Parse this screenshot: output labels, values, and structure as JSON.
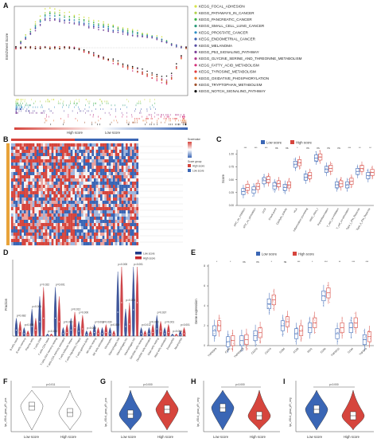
{
  "figure": {
    "panel_labels": [
      "A",
      "B",
      "C",
      "D",
      "E",
      "F",
      "G",
      "H",
      "I"
    ]
  },
  "panelA": {
    "ylabel": "Enrichment Score",
    "xlabel_left": "High score",
    "xlabel_right": "Low score",
    "legend": [
      {
        "name": "KEGG_FOCAL_ADHESION",
        "color": "#d6e34a"
      },
      {
        "name": "KEGG_PATHWAYS_IN_CANCER",
        "color": "#b1d14a"
      },
      {
        "name": "KEGG_PANCREATIC_CANCER",
        "color": "#3db349"
      },
      {
        "name": "KEGG_SMALL_CELL_LUNG_CANCER",
        "color": "#2a9a7a"
      },
      {
        "name": "KEGG_PROSTATE_CANCER",
        "color": "#2c8dc4"
      },
      {
        "name": "KEGG_ENDOMETRIAL_CANCER",
        "color": "#3a5fb2"
      },
      {
        "name": "KEGG_MELANOMA",
        "color": "#574ea3"
      },
      {
        "name": "KEGG_P53_SIGNALING_PATHWAY",
        "color": "#7c3f98"
      },
      {
        "name": "KEGG_GLYCINE_SERINE_AND_THREONINE_METABOLISM",
        "color": "#b03a8e"
      },
      {
        "name": "KEGG_FATTY_ACID_METABOLISM",
        "color": "#d4307a"
      },
      {
        "name": "KEGG_TYROSINE_METABOLISM",
        "color": "#e23a3a"
      },
      {
        "name": "KEGG_OXIDATIVE_PHOSPHORYLATION",
        "color": "#e9772e"
      },
      {
        "name": "KEGG_TRYPTOPHAN_METABOLISM",
        "color": "#a0522d"
      },
      {
        "name": "KEGG_NOTCH_SIGNALING_PATHWAY",
        "color": "#111111"
      }
    ]
  },
  "panelB": {
    "legend_title_1": "Scorevalue",
    "legend_title_2": "Score group",
    "legend_group": "Score group",
    "legend_high": "High score",
    "legend_low": "Low score"
  },
  "panelC": {
    "ylabel": "Score",
    "legend_low": "Low score",
    "legend_high": "High score",
    "colors": {
      "low": "#3a66b5",
      "high": "#d6453d"
    },
    "categories": [
      "APC_co_inhibition",
      "APC_co_stimulation",
      "CCR",
      "Check-point",
      "Cytolytic_activity",
      "HLA",
      "Inflammation-promoting",
      "MHC_class_I",
      "Parainflammation",
      "T_cell_co-inhibition",
      "T_cell_co-stimulation",
      "Type_I_IFN_Reponse",
      "Type_II_IFN_Reponse"
    ],
    "significance": [
      "***",
      "***",
      "***",
      "ns",
      "ns",
      "*",
      "ns",
      "ns",
      "ns",
      "ns",
      "***",
      "**",
      "**"
    ],
    "y_ticks": [
      "0.00",
      "0.25",
      "0.50",
      "0.75",
      "1.00"
    ]
  },
  "panelD": {
    "ylabel": "Fraction",
    "legend_low": "Low score",
    "legend_high": "High score",
    "colors": {
      "low": "#1f3a8a",
      "high": "#c5262c"
    },
    "categories": [
      "B cells naive",
      "B cells memory",
      "Plasma cells",
      "T cells CD8",
      "T cells CD4 naive",
      "T cells CD4 memory resting",
      "T cells CD4 memory activated",
      "T cells follicular helper",
      "T cells regulatory (Tregs)",
      "T cells gamma delta",
      "NK cells resting",
      "NK cells activated",
      "Monocytes",
      "Macrophages M0",
      "Macrophages M1",
      "Macrophages M2",
      "Dendritic cells resting",
      "Dendritic cells activated",
      "Mast cells resting",
      "Mast cells activated",
      "Eosinophils",
      "Neutrophils"
    ],
    "pvalues": [
      "p=0.082",
      "p=0.005",
      "p=0.001",
      "p=0.022",
      "p=0.165",
      "p=0.001",
      "p=0.000",
      "p=0.012",
      "p=0.000",
      "p=0.000",
      "p=0.004",
      "p=0.030",
      "p=0.000",
      "p=0.000",
      "p=0.000",
      "p=0.001",
      "p=0.012",
      "p=0.000",
      "p=0.037",
      "p=0.001",
      "p=0.004",
      "p=0.001"
    ]
  },
  "panelE": {
    "ylabel": "Gene expression",
    "legend_low": "Low score",
    "legend_high": "High score",
    "colors": {
      "low": "#3a66b5",
      "high": "#d6453d"
    },
    "genes": [
      "TNFRSF9",
      "CD80",
      "TNFRSF18",
      "CD276",
      "CD274",
      "CD86",
      "CD28",
      "IDO1",
      "CD40",
      "TNFSF15",
      "CD44",
      "TNFSF4"
    ],
    "significance": [
      "*",
      "*",
      "ns",
      "ns",
      "*",
      "ns",
      "***",
      "*",
      "***",
      "**",
      "***",
      "***"
    ],
    "y_ticks": [
      "0",
      "2",
      "4",
      "6",
      "8"
    ]
  },
  "panelF": {
    "ylabel": "lps_c30c4_gsva_pFr_pos",
    "pvalue": "p=0.011",
    "x_low": "Low score",
    "x_high": "High score"
  },
  "panelG": {
    "ylabel": "lps_c30c4_gsva_pFr_pos",
    "pvalue": "p=0.000",
    "x_low": "Low score",
    "x_high": "High score"
  },
  "panelH": {
    "ylabel": "lps_c30c4_gsva_pFr_neg",
    "pvalue": "p=0.000",
    "x_low": "Low score",
    "x_high": "High score"
  },
  "panelI": {
    "ylabel": "lps_c30c4_gsva_pFr_neg",
    "pvalue": "p=0.000",
    "x_low": "Low score",
    "x_high": "High score"
  },
  "chart_data": [
    {
      "type": "line",
      "title": "",
      "ylabel": "Enrichment Score",
      "note": "GSEA running enrichment curves; high-score pathways rise early, metabolism pathways dip late",
      "series": [
        {
          "name": "KEGG_FOCAL_ADHESION",
          "peak_es": 0.68
        },
        {
          "name": "KEGG_PATHWAYS_IN_CANCER",
          "peak_es": 0.62
        },
        {
          "name": "KEGG_PANCREATIC_CANCER",
          "peak_es": 0.6
        },
        {
          "name": "KEGG_SMALL_CELL_LUNG_CANCER",
          "peak_es": 0.58
        },
        {
          "name": "KEGG_PROSTATE_CANCER",
          "peak_es": 0.55
        },
        {
          "name": "KEGG_ENDOMETRIAL_CANCER",
          "peak_es": 0.52
        },
        {
          "name": "KEGG_MELANOMA",
          "peak_es": 0.5
        },
        {
          "name": "KEGG_P53_SIGNALING_PATHWAY",
          "peak_es": 0.48
        },
        {
          "name": "KEGG_GLYCINE_SERINE_AND_THREONINE_METABOLISM",
          "peak_es": -0.55
        },
        {
          "name": "KEGG_FATTY_ACID_METABOLISM",
          "peak_es": -0.62
        },
        {
          "name": "KEGG_TYROSINE_METABOLISM",
          "peak_es": -0.6
        },
        {
          "name": "KEGG_OXIDATIVE_PHOSPHORYLATION",
          "peak_es": -0.58
        },
        {
          "name": "KEGG_TRYPTOPHAN_METABOLISM",
          "peak_es": -0.57
        },
        {
          "name": "KEGG_NOTCH_SIGNALING_PATHWAY",
          "peak_es": -0.5
        }
      ]
    },
    {
      "type": "box",
      "title": "",
      "ylabel": "Score",
      "ylim": [
        0,
        1.05
      ],
      "categories": [
        "APC_co_inhibition",
        "APC_co_stimulation",
        "CCR",
        "Check-point",
        "Cytolytic_activity",
        "HLA",
        "Inflammation-promoting",
        "MHC_class_I",
        "Parainflammation",
        "T_cell_co-inhibition",
        "T_cell_co-stimulation",
        "Type_I_IFN_Reponse",
        "Type_II_IFN_Reponse"
      ],
      "series": [
        {
          "name": "Low score",
          "median": [
            0.27,
            0.3,
            0.48,
            0.38,
            0.35,
            0.8,
            0.55,
            0.92,
            0.7,
            0.4,
            0.4,
            0.66,
            0.58
          ]
        },
        {
          "name": "High score",
          "median": [
            0.35,
            0.37,
            0.5,
            0.42,
            0.4,
            0.83,
            0.58,
            0.94,
            0.72,
            0.42,
            0.47,
            0.72,
            0.64
          ]
        }
      ]
    },
    {
      "type": "violin",
      "title": "",
      "ylabel": "Fraction",
      "categories": [
        "B cells naive",
        "B cells memory",
        "Plasma cells",
        "T cells CD8",
        "T cells CD4 naive",
        "T cells CD4 memory resting",
        "T cells CD4 memory activated",
        "T cells follicular helper",
        "T cells regulatory (Tregs)",
        "T cells gamma delta",
        "NK cells resting",
        "NK cells activated",
        "Monocytes",
        "Macrophages M0",
        "Macrophages M1",
        "Macrophages M2",
        "Dendritic cells resting",
        "Dendritic cells activated",
        "Mast cells resting",
        "Mast cells activated",
        "Eosinophils",
        "Neutrophils"
      ],
      "series": [
        {
          "name": "Low score",
          "median": [
            0.05,
            0.02,
            0.08,
            0.12,
            0.0,
            0.15,
            0.02,
            0.05,
            0.04,
            0.01,
            0.03,
            0.02,
            0.02,
            0.2,
            0.08,
            0.22,
            0.02,
            0.02,
            0.06,
            0.02,
            0.0,
            0.01
          ]
        },
        {
          "name": "High score",
          "median": [
            0.04,
            0.01,
            0.05,
            0.15,
            0.0,
            0.12,
            0.03,
            0.07,
            0.06,
            0.01,
            0.02,
            0.03,
            0.01,
            0.28,
            0.1,
            0.28,
            0.01,
            0.03,
            0.04,
            0.03,
            0.0,
            0.02
          ]
        }
      ]
    },
    {
      "type": "box",
      "title": "",
      "ylabel": "Gene expression",
      "ylim": [
        0,
        8
      ],
      "categories": [
        "TNFRSF9",
        "CD80",
        "TNFRSF18",
        "CD276",
        "CD274",
        "CD86",
        "CD28",
        "IDO1",
        "CD40",
        "TNFSF15",
        "CD44",
        "TNFSF4"
      ],
      "series": [
        {
          "name": "Low score",
          "median": [
            1.5,
            0.4,
            0.5,
            1.0,
            4.2,
            2.0,
            1.2,
            1.8,
            5.0,
            1.2,
            1.8,
            0.6
          ]
        },
        {
          "name": "High score",
          "median": [
            2.0,
            0.5,
            0.6,
            1.3,
            4.6,
            2.4,
            1.5,
            2.3,
            5.3,
            1.8,
            2.3,
            0.9
          ]
        }
      ]
    }
  ]
}
